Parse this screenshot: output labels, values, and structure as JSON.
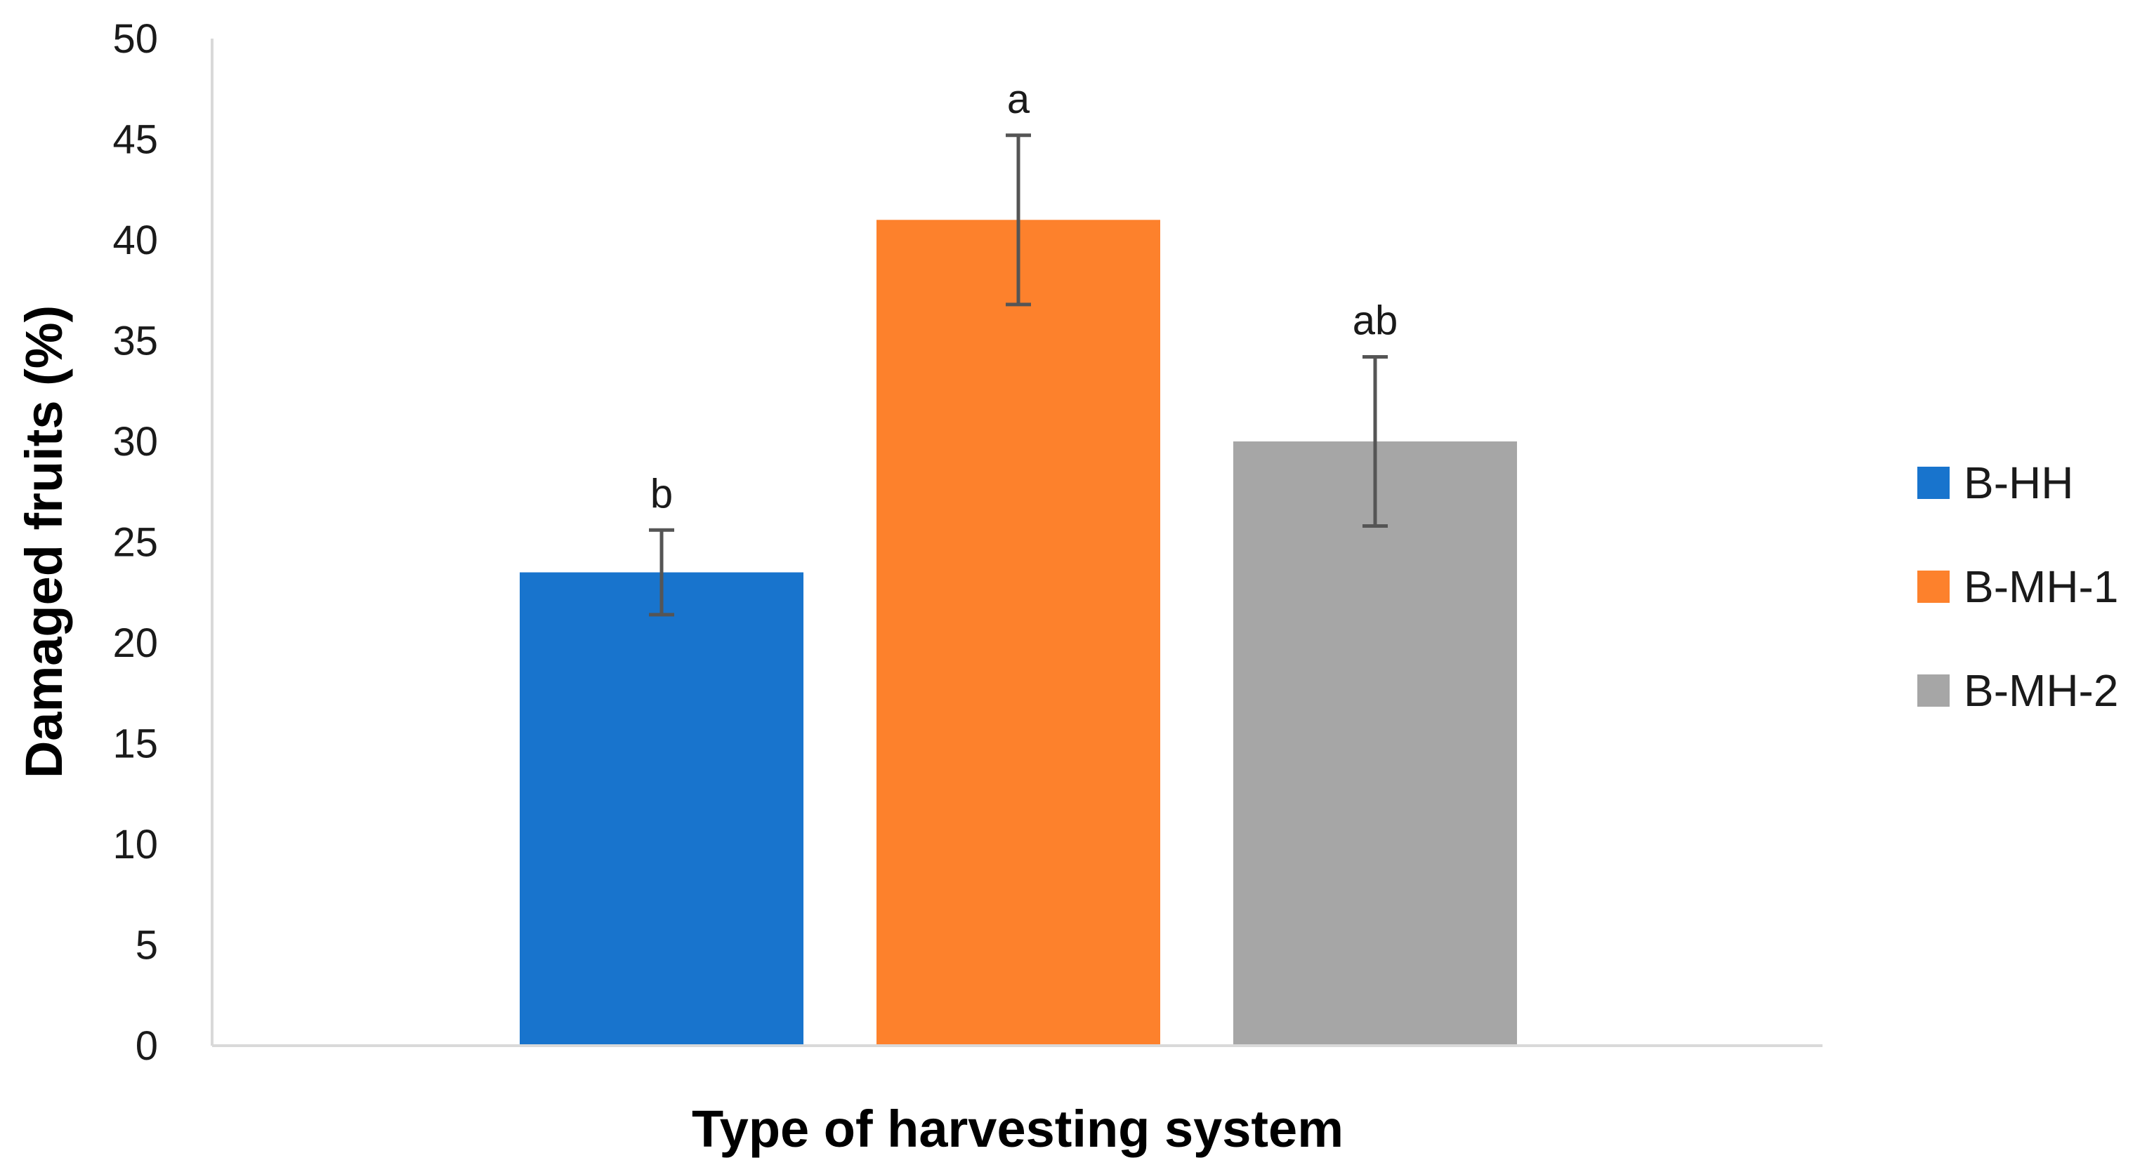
{
  "chart_data": {
    "type": "bar",
    "title": "",
    "xlabel": "Type of harvesting system",
    "ylabel": "Damaged fruits (%)",
    "ylim": [
      0,
      50
    ],
    "yticks": [
      0,
      5,
      10,
      15,
      20,
      25,
      30,
      35,
      40,
      45,
      50
    ],
    "grid": false,
    "legend_position": "right",
    "series": [
      {
        "name": "B-HH",
        "value": 23.5,
        "error": 2.1,
        "significance": "b",
        "color": "#1874CD"
      },
      {
        "name": "B-MH-1",
        "value": 41.0,
        "error": 4.2,
        "significance": "a",
        "color": "#FD812C"
      },
      {
        "name": "B-MH-2",
        "value": 30.0,
        "error": 4.2,
        "significance": "ab",
        "color": "#A6A6A6"
      }
    ]
  }
}
